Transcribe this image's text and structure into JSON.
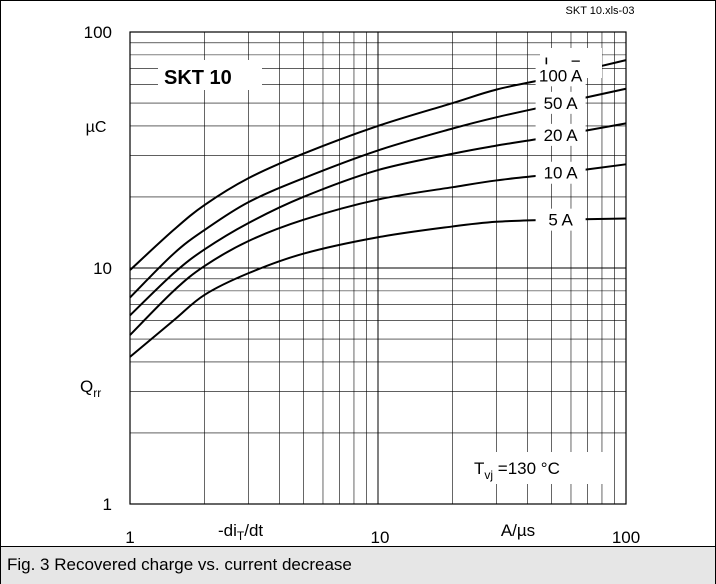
{
  "chart_data": {
    "type": "line",
    "x_scale": "log",
    "y_scale": "log",
    "xlim": [
      1,
      100
    ],
    "ylim": [
      1,
      100
    ],
    "grid": true,
    "x_ticks": [
      "1",
      "10",
      "100"
    ],
    "y_ticks": [
      "100",
      "10",
      "1"
    ],
    "xlabel": "-diT/dt",
    "xlabel_main": "-di",
    "xlabel_sub": "T",
    "xlabel_tail": "/dt",
    "x_unit": "A/µs",
    "ylabel_main": "Q",
    "ylabel_sub": "rr",
    "y_unit": "µC",
    "source_tag": "SKT 10.xls-03",
    "title": "SKT 10",
    "legend_title_main": "I",
    "legend_title_sub": "TM",
    "legend_title_tail": " =",
    "condition_main": "T",
    "condition_sub": "vj",
    "condition_tail": " =130 °C",
    "series": [
      {
        "name": "100 A",
        "x": [
          1,
          1.5,
          2,
          3,
          5,
          10,
          20,
          30,
          50,
          100
        ],
        "values": [
          9.8,
          14.5,
          18.5,
          24,
          30.5,
          40,
          50,
          57,
          64,
          76
        ]
      },
      {
        "name": "50 A",
        "x": [
          1,
          1.5,
          2,
          3,
          5,
          10,
          20,
          30,
          50,
          100
        ],
        "values": [
          7.5,
          11.5,
          14.5,
          19,
          24,
          31.5,
          39,
          43.5,
          49,
          57.5
        ]
      },
      {
        "name": "20 A",
        "x": [
          1,
          1.5,
          2,
          3,
          5,
          10,
          20,
          30,
          50,
          100
        ],
        "values": [
          6.3,
          9.5,
          12,
          15.5,
          20,
          26,
          30.5,
          33,
          36,
          41
        ]
      },
      {
        "name": "10 A",
        "x": [
          1,
          1.5,
          2,
          3,
          5,
          10,
          20,
          30,
          50,
          100
        ],
        "values": [
          5.2,
          8,
          10.2,
          13,
          16,
          19.5,
          22,
          23.5,
          25,
          27.5
        ]
      },
      {
        "name": "5 A",
        "x": [
          1,
          1.5,
          2,
          3,
          5,
          10,
          20,
          30,
          50,
          100
        ],
        "values": [
          4.2,
          6,
          7.7,
          9.5,
          11.5,
          13.5,
          15,
          15.7,
          16,
          16.2
        ]
      }
    ]
  },
  "caption": "Fig. 3 Recovered charge vs. current decrease"
}
